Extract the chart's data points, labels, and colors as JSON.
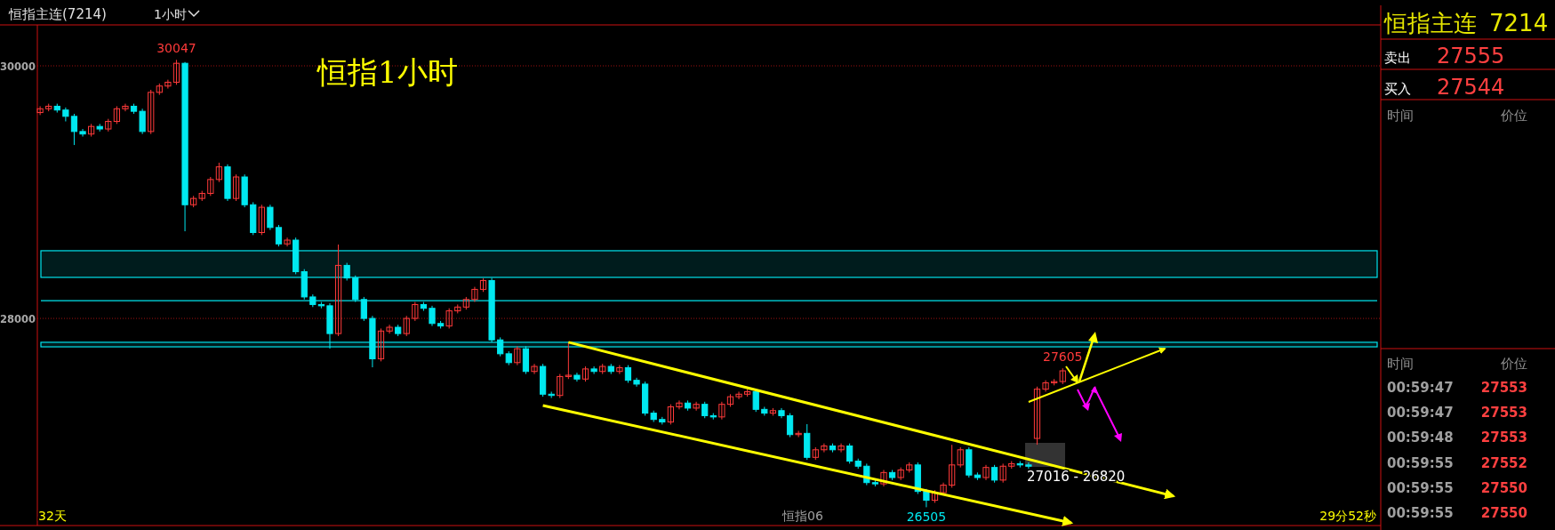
{
  "chart_data": [
    {
      "type": "candlestick",
      "title": "恒指1小时",
      "subtitle": "恒指主连(7214)",
      "categories": [
        null,
        null,
        null,
        null,
        null,
        null,
        null,
        null,
        null,
        null,
        null,
        null,
        null,
        null,
        null,
        null,
        null,
        null,
        null,
        null,
        null,
        null,
        null,
        null,
        null,
        null,
        null,
        null,
        null,
        null,
        null,
        null,
        null,
        null,
        null,
        null,
        null,
        null,
        null,
        null,
        null,
        null,
        null,
        null,
        null,
        null,
        null,
        null,
        null,
        null,
        null,
        null,
        null,
        null,
        null,
        null,
        null,
        null,
        null,
        null,
        null,
        null,
        null,
        null,
        null,
        null,
        null,
        null,
        null,
        null,
        null,
        null,
        null,
        null,
        null,
        null,
        null,
        null,
        null,
        null,
        null,
        null,
        null,
        null,
        null,
        null,
        null,
        null,
        null,
        null,
        null,
        null,
        null,
        null,
        null,
        null,
        null,
        null,
        null,
        null,
        null,
        null,
        null,
        null,
        null,
        null,
        null,
        null,
        null,
        null,
        null,
        null,
        null,
        null,
        null,
        null,
        null,
        null,
        null,
        null,
        null,
        null,
        null,
        null,
        null,
        null,
        null,
        null,
        null,
        null,
        null,
        null,
        null,
        null,
        null,
        null,
        null,
        null,
        null,
        null,
        null,
        null,
        null,
        null,
        null,
        null,
        null,
        null,
        null,
        null,
        null,
        null,
        null,
        null,
        null,
        null,
        null,
        null
      ],
      "ohlc": [
        [
          29630,
          29680,
          29610,
          29660
        ],
        [
          29660,
          29700,
          29640,
          29680
        ],
        [
          29680,
          29700,
          29630,
          29650
        ],
        [
          29650,
          29670,
          29560,
          29600
        ],
        [
          29600,
          29620,
          29373,
          29480
        ],
        [
          29480,
          29500,
          29440,
          29460
        ],
        [
          29460,
          29540,
          29440,
          29520
        ],
        [
          29520,
          29540,
          29480,
          29500
        ],
        [
          29500,
          29580,
          29480,
          29560
        ],
        [
          29560,
          29680,
          29540,
          29660
        ],
        [
          29660,
          29700,
          29640,
          29680
        ],
        [
          29680,
          29700,
          29620,
          29640
        ],
        [
          29640,
          29660,
          29460,
          29480
        ],
        [
          29480,
          29810,
          29460,
          29790
        ],
        [
          29790,
          29860,
          29770,
          29840
        ],
        [
          29840,
          29890,
          29820,
          29870
        ],
        [
          29870,
          30047,
          29850,
          30020
        ],
        [
          30020,
          30030,
          28690,
          28900
        ],
        [
          28900,
          28970,
          28880,
          28950
        ],
        [
          28950,
          29010,
          28930,
          28990
        ],
        [
          28990,
          29120,
          28970,
          29100
        ],
        [
          29100,
          29233,
          29080,
          29200
        ],
        [
          29200,
          29220,
          28930,
          28950
        ],
        [
          28950,
          29140,
          28930,
          29120
        ],
        [
          29120,
          29140,
          28880,
          28900
        ],
        [
          28900,
          28920,
          28660,
          28680
        ],
        [
          28680,
          28900,
          28660,
          28880
        ],
        [
          28880,
          28900,
          28700,
          28720
        ],
        [
          28720,
          28740,
          28570,
          28590
        ],
        [
          28590,
          28640,
          28570,
          28620
        ],
        [
          28620,
          28640,
          28350,
          28370
        ],
        [
          28370,
          28390,
          28150,
          28170
        ],
        [
          28170,
          28190,
          28090,
          28110
        ],
        [
          28110,
          28130,
          28080,
          28100
        ],
        [
          28100,
          28120,
          27761,
          27880
        ],
        [
          27880,
          28585,
          27860,
          28420
        ],
        [
          28420,
          28440,
          28300,
          28320
        ],
        [
          28320,
          28340,
          28130,
          28150
        ],
        [
          28150,
          28170,
          27980,
          28000
        ],
        [
          28000,
          28020,
          27613,
          27680
        ],
        [
          27680,
          27920,
          27660,
          27900
        ],
        [
          27900,
          27950,
          27880,
          27930
        ],
        [
          27930,
          27950,
          27860,
          27880
        ],
        [
          27880,
          28020,
          27860,
          28000
        ],
        [
          28000,
          28130,
          27980,
          28110
        ],
        [
          28110,
          28130,
          28060,
          28080
        ],
        [
          28080,
          28100,
          27940,
          27960
        ],
        [
          27960,
          27980,
          27920,
          27940
        ],
        [
          27940,
          28080,
          27920,
          28060
        ],
        [
          28060,
          28110,
          28040,
          28090
        ],
        [
          28090,
          28170,
          28070,
          28150
        ],
        [
          28150,
          28250,
          28130,
          28230
        ],
        [
          28230,
          28317,
          28210,
          28300
        ],
        [
          28300,
          28320,
          27810,
          27830
        ],
        [
          27830,
          27850,
          27700,
          27720
        ],
        [
          27720,
          27740,
          27630,
          27650
        ],
        [
          27650,
          27780,
          27630,
          27760
        ],
        [
          27760,
          27780,
          27560,
          27580
        ],
        [
          27580,
          27640,
          27560,
          27620
        ],
        [
          27620,
          27640,
          27380,
          27400
        ],
        [
          27400,
          27420,
          27370,
          27390
        ],
        [
          27390,
          27560,
          27370,
          27540
        ],
        [
          27540,
          27811,
          27520,
          27550
        ],
        [
          27550,
          27570,
          27500,
          27520
        ],
        [
          27520,
          27620,
          27500,
          27600
        ],
        [
          27600,
          27620,
          27560,
          27580
        ],
        [
          27580,
          27640,
          27560,
          27620
        ],
        [
          27620,
          27640,
          27560,
          27580
        ],
        [
          27580,
          27630,
          27560,
          27610
        ],
        [
          27610,
          27630,
          27490,
          27510
        ],
        [
          27510,
          27530,
          27460,
          27480
        ],
        [
          27480,
          27500,
          27230,
          27250
        ],
        [
          27250,
          27270,
          27180,
          27200
        ],
        [
          27200,
          27220,
          27160,
          27180
        ],
        [
          27180,
          27320,
          27160,
          27300
        ],
        [
          27300,
          27350,
          27280,
          27330
        ],
        [
          27330,
          27350,
          27270,
          27290
        ],
        [
          27290,
          27340,
          27270,
          27320
        ],
        [
          27320,
          27340,
          27210,
          27230
        ],
        [
          27230,
          27250,
          27200,
          27220
        ],
        [
          27220,
          27340,
          27200,
          27320
        ],
        [
          27320,
          27400,
          27300,
          27380
        ],
        [
          27380,
          27420,
          27360,
          27400
        ],
        [
          27400,
          27440,
          27380,
          27420
        ],
        [
          27420,
          27440,
          27260,
          27280
        ],
        [
          27280,
          27300,
          27230,
          27250
        ],
        [
          27250,
          27290,
          27230,
          27270
        ],
        [
          27270,
          27290,
          27210,
          27230
        ],
        [
          27230,
          27250,
          27060,
          27080
        ],
        [
          27080,
          27110,
          27060,
          27090
        ],
        [
          27090,
          27163,
          26880,
          26900
        ],
        [
          26900,
          26980,
          26880,
          26960
        ],
        [
          26960,
          27010,
          26940,
          26990
        ],
        [
          26990,
          27010,
          26940,
          26960
        ],
        [
          26960,
          27010,
          26940,
          26990
        ],
        [
          26990,
          27010,
          26850,
          26870
        ],
        [
          26870,
          26890,
          26810,
          26830
        ],
        [
          26830,
          26850,
          26680,
          26700
        ],
        [
          26700,
          26720,
          26670,
          26690
        ],
        [
          26690,
          26800,
          26670,
          26780
        ],
        [
          26780,
          26800,
          26720,
          26740
        ],
        [
          26740,
          26820,
          26720,
          26800
        ],
        [
          26800,
          26860,
          26780,
          26840
        ],
        [
          26840,
          26860,
          26610,
          26630
        ],
        [
          26630,
          26650,
          26505,
          26560
        ],
        [
          26560,
          26640,
          26540,
          26620
        ],
        [
          26620,
          26700,
          26600,
          26680
        ],
        [
          26680,
          26999,
          26660,
          26840
        ],
        [
          26840,
          26980,
          26820,
          26960
        ],
        [
          26960,
          26980,
          26740,
          26760
        ],
        [
          26760,
          26780,
          26720,
          26740
        ],
        [
          26740,
          26840,
          26720,
          26820
        ],
        [
          26820,
          26840,
          26700,
          26720
        ],
        [
          26720,
          26850,
          26700,
          26830
        ],
        [
          26830,
          26870,
          26810,
          26850
        ],
        [
          26850,
          26870,
          26820,
          26840
        ],
        [
          26840,
          26860,
          26810,
          26830
        ],
        [
          27050,
          27460,
          27000,
          27440
        ],
        [
          27440,
          27510,
          27420,
          27490
        ],
        [
          27490,
          27520,
          27470,
          27500
        ],
        [
          27500,
          27605,
          27480,
          27585
        ],
        null,
        null,
        null,
        null,
        null,
        null,
        null,
        null,
        null,
        null,
        null,
        null,
        null,
        null,
        null,
        null,
        null,
        null,
        null,
        null,
        null,
        null,
        null,
        null,
        null,
        null,
        null,
        null,
        null,
        null,
        null,
        null,
        null,
        null,
        null,
        null,
        null
      ],
      "series": [
        {
          "type": "line",
          "color": "#ffff00",
          "values": [
            null,
            null,
            null,
            null,
            null,
            null,
            null,
            null,
            null,
            null,
            null,
            null,
            null,
            null,
            null,
            null,
            null,
            null,
            null,
            null,
            null,
            null,
            null,
            null,
            null,
            null,
            null,
            null,
            null,
            null,
            null,
            null,
            null,
            null,
            null,
            null,
            null,
            null,
            null,
            null,
            null,
            null,
            null,
            null,
            null,
            null,
            null,
            null,
            null,
            null,
            null,
            null,
            null,
            null,
            null,
            null,
            null,
            null,
            null,
            null,
            null,
            null,
            27811,
            null,
            null,
            null,
            null,
            null,
            null,
            null,
            null,
            null,
            null,
            null,
            null,
            null,
            null,
            null,
            null,
            null,
            null,
            null,
            null,
            null,
            null,
            null,
            null,
            null,
            null,
            null,
            null,
            null,
            null,
            null,
            null,
            null,
            null,
            null,
            null,
            null,
            null,
            null,
            null,
            null,
            null,
            null,
            null,
            null,
            null,
            null,
            null,
            null,
            null,
            null,
            null,
            null,
            null,
            null,
            null,
            null,
            null,
            null,
            null,
            null,
            null,
            null,
            null,
            null,
            null,
            null,
            null,
            null,
            null,
            26593,
            null,
            null,
            null,
            null,
            null,
            null,
            null,
            null,
            null,
            null,
            null,
            null,
            null,
            null,
            null,
            null,
            null,
            null,
            null,
            null,
            null,
            null,
            null,
            null
          ]
        },
        {
          "type": "line",
          "color": "#ffff00",
          "values": [
            null,
            null,
            null,
            null,
            null,
            null,
            null,
            null,
            null,
            null,
            null,
            null,
            null,
            null,
            null,
            null,
            null,
            null,
            null,
            null,
            null,
            null,
            null,
            null,
            null,
            null,
            null,
            null,
            null,
            null,
            null,
            null,
            null,
            null,
            null,
            null,
            null,
            null,
            null,
            null,
            null,
            null,
            null,
            null,
            null,
            null,
            null,
            null,
            null,
            null,
            null,
            null,
            null,
            null,
            null,
            null,
            null,
            null,
            null,
            27311,
            null,
            null,
            null,
            null,
            null,
            null,
            null,
            null,
            null,
            null,
            null,
            null,
            null,
            null,
            null,
            null,
            null,
            null,
            null,
            null,
            null,
            null,
            null,
            null,
            null,
            null,
            null,
            null,
            null,
            null,
            null,
            null,
            null,
            null,
            null,
            null,
            null,
            null,
            null,
            null,
            null,
            null,
            null,
            null,
            null,
            null,
            null,
            null,
            null,
            null,
            null,
            null,
            null,
            null,
            null,
            null,
            null,
            null,
            null,
            null,
            null,
            26381,
            null,
            null,
            null,
            null,
            null,
            null,
            null,
            null,
            null,
            null,
            null,
            null,
            null,
            null,
            null,
            null,
            null,
            null,
            null,
            null,
            null,
            null,
            null,
            null,
            null,
            null,
            null,
            null,
            null,
            null,
            null,
            null,
            null,
            null,
            null,
            null
          ]
        },
        {
          "type": "line",
          "color": "#ffff00",
          "values": [
            null,
            null,
            null,
            null,
            null,
            null,
            null,
            null,
            null,
            null,
            null,
            null,
            null,
            null,
            null,
            null,
            null,
            null,
            null,
            null,
            null,
            null,
            null,
            null,
            null,
            null,
            null,
            null,
            null,
            null,
            null,
            null,
            null,
            null,
            null,
            null,
            null,
            null,
            null,
            null,
            null,
            null,
            null,
            null,
            null,
            null,
            null,
            null,
            null,
            null,
            null,
            null,
            null,
            null,
            null,
            null,
            null,
            null,
            null,
            null,
            null,
            null,
            null,
            null,
            null,
            null,
            null,
            null,
            null,
            null,
            null,
            null,
            null,
            null,
            null,
            null,
            null,
            null,
            null,
            null,
            null,
            null,
            null,
            null,
            null,
            null,
            null,
            null,
            null,
            null,
            null,
            null,
            null,
            null,
            null,
            null,
            null,
            null,
            null,
            null,
            null,
            null,
            null,
            null,
            null,
            null,
            null,
            null,
            null,
            null,
            null,
            null,
            null,
            null,
            null,
            null,
            27339,
            null,
            null,
            null,
            null,
            null,
            null,
            null,
            null,
            null,
            null,
            null,
            null,
            null,
            null,
            null,
            27761,
            null,
            null,
            null,
            null,
            null,
            null,
            null,
            null,
            null,
            null,
            null,
            null,
            null,
            null,
            null,
            null,
            null,
            null,
            null,
            null,
            null,
            null,
            null,
            null,
            null
          ]
        }
      ],
      "ylim": [
        26360,
        30324
      ],
      "yticks": [
        30000,
        28000
      ],
      "grid": "y",
      "bands": [
        {
          "axis": "y",
          "from": 28325,
          "to": 28536,
          "color": "#00e5ee"
        },
        {
          "axis": "y",
          "from": 27775,
          "to": 27811,
          "color": "#00e5ee"
        }
      ],
      "ref_lines": [
        {
          "axis": "y",
          "value": 28141,
          "color": "#00e5ee"
        }
      ],
      "annotations": [
        "1小时",
        {
          "text": "30047",
          "y": 30047
        },
        {
          "text": "27605",
          "y": 27605
        },
        {
          "text": "26505",
          "y": 26505
        },
        "27016 - 26820",
        "恒指06",
        "32天",
        "29分52秒"
      ]
    },
    {
      "type": "other",
      "title": "恒指主连",
      "subtitle": "7214",
      "annotations": [
        "卖出",
        "27555",
        "买入",
        "27544",
        "时间",
        "价位",
        "时间",
        "价位",
        "00:59:47",
        "27553",
        "00:59:47",
        "27553",
        "00:59:48",
        "27553",
        "00:59:55",
        "27552",
        "00:59:55",
        "27550",
        "00:59:55",
        "27550"
      ]
    }
  ]
}
